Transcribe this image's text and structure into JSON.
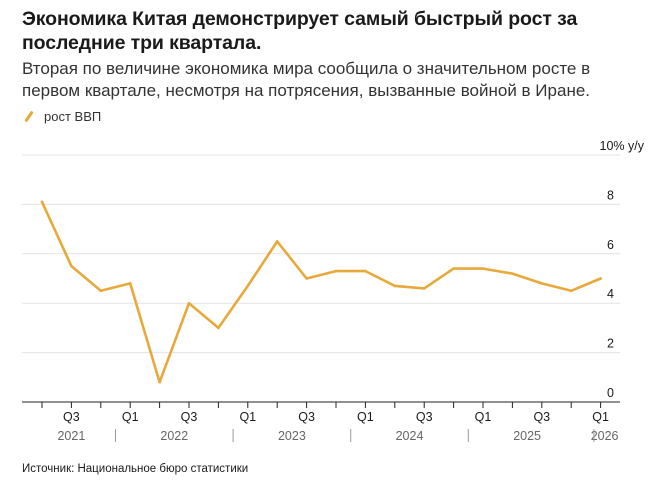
{
  "title": "Экономика Китая демонстрирует самый быстрый рост за последние три квартала.",
  "subtitle": "Вторая по величине экономика мира сообщила о значительном росте в первом квартале, несмотря на потрясения, вызванные войной в Иране.",
  "legend_label": "рост ВВП",
  "source": "Источник: Национальное бюро статистики",
  "colors": {
    "line": "#e8a93b",
    "grid": "#e3e3e3",
    "axis": "#222222"
  },
  "chart_data": {
    "type": "line",
    "title": "Экономика Китая демонстрирует самый быстрый рост за последние три квартала.",
    "y_unit_label": "10% y/y",
    "ylim": [
      0,
      10
    ],
    "y_ticks": [
      0,
      2,
      4,
      6,
      8
    ],
    "x": [
      "2021 Q2",
      "2021 Q3",
      "2021 Q4",
      "2022 Q1",
      "2022 Q2",
      "2022 Q3",
      "2022 Q4",
      "2023 Q1",
      "2023 Q2",
      "2023 Q3",
      "2023 Q4",
      "2024 Q1",
      "2024 Q2",
      "2024 Q3",
      "2024 Q4",
      "2025 Q1",
      "2025 Q2",
      "2025 Q3",
      "2025 Q4",
      "2026 Q1"
    ],
    "series": [
      {
        "name": "рост ВВП",
        "values": [
          8.1,
          5.5,
          4.5,
          4.8,
          0.8,
          4.0,
          3.0,
          4.7,
          6.5,
          5.0,
          5.3,
          5.3,
          4.7,
          4.6,
          5.4,
          5.4,
          5.2,
          4.8,
          4.5,
          5.0
        ]
      }
    ],
    "x_tick_labels": [
      {
        "index": 1,
        "label": "Q3"
      },
      {
        "index": 3,
        "label": "Q1"
      },
      {
        "index": 5,
        "label": "Q3"
      },
      {
        "index": 7,
        "label": "Q1"
      },
      {
        "index": 9,
        "label": "Q3"
      },
      {
        "index": 11,
        "label": "Q1"
      },
      {
        "index": 13,
        "label": "Q3"
      },
      {
        "index": 15,
        "label": "Q1"
      },
      {
        "index": 17,
        "label": "Q3"
      },
      {
        "index": 19,
        "label": "Q1"
      }
    ],
    "year_labels": [
      {
        "label": "2021",
        "start": 0,
        "end": 2
      },
      {
        "label": "2022",
        "start": 3,
        "end": 6
      },
      {
        "label": "2023",
        "start": 7,
        "end": 10
      },
      {
        "label": "2024",
        "start": 11,
        "end": 14
      },
      {
        "label": "2025",
        "start": 15,
        "end": 18
      },
      {
        "label": "2026",
        "start": 19,
        "end": 19
      }
    ]
  }
}
